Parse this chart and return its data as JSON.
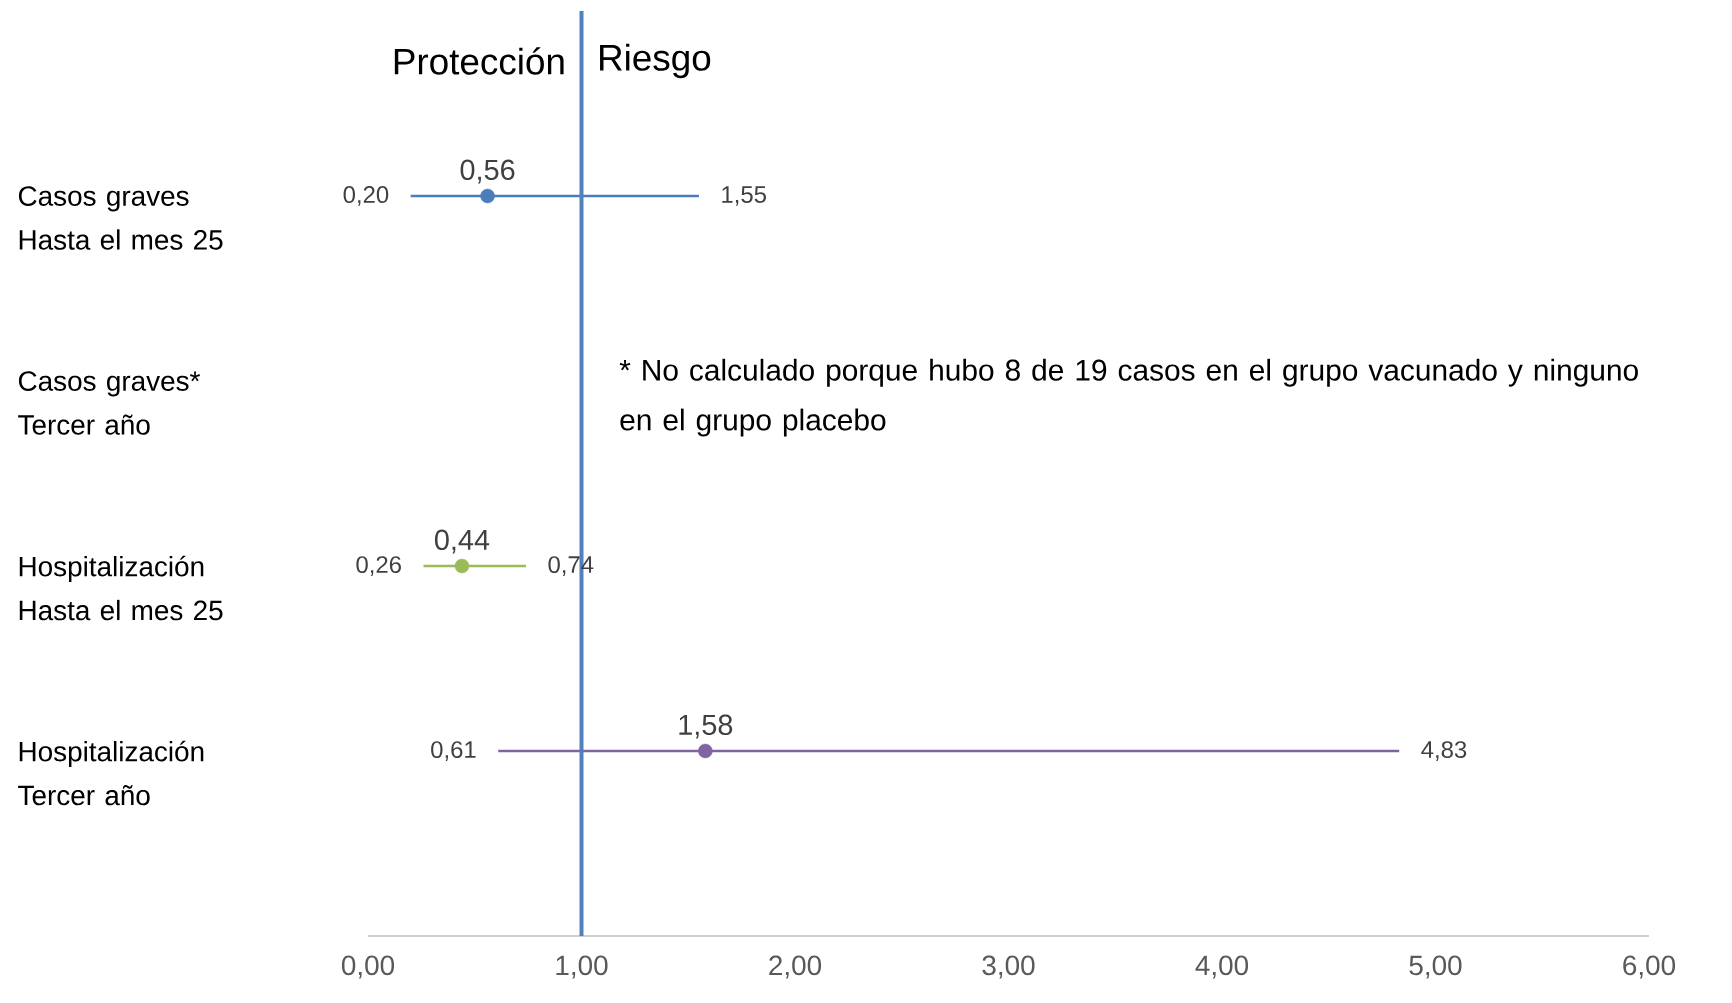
{
  "chart_data": {
    "type": "scatter",
    "orientation": "horizontal",
    "categories": [
      "Casos graves Hasta el mes 25",
      "Casos graves* Tercer año",
      "Hospitalización Hasta el mes 25",
      "Hospitalización Tercer año"
    ],
    "values": [
      0.56,
      null,
      0.44,
      1.58
    ],
    "errors": [
      [
        0.2,
        1.55
      ],
      null,
      [
        0.26,
        0.74
      ],
      [
        0.61,
        4.83
      ]
    ],
    "colors": [
      "#4a7ebb",
      "#4a7ebb",
      "#9bbb59",
      "#8064a2"
    ],
    "value_labels": [
      "0,56",
      null,
      "0,44",
      "1,58"
    ],
    "xlim": [
      0,
      6
    ],
    "xticks": [
      {
        "value": 0,
        "label": "0,00"
      },
      {
        "value": 1,
        "label": "1,00"
      },
      {
        "value": 2,
        "label": "2,00"
      },
      {
        "value": 3,
        "label": "3,00"
      },
      {
        "value": 4,
        "label": "4,00"
      },
      {
        "value": 5,
        "label": "5,00"
      },
      {
        "value": 6,
        "label": "6,00"
      }
    ],
    "ref_lines": [
      {
        "axis": "x",
        "value": 1,
        "color": "#4f81bd"
      }
    ],
    "annotations": [
      "Protección",
      "Riesgo",
      "* No calculado porque hubo 8 de 19 casos en el grupo vacunado y ninguno en el grupo placebo",
      "0,20",
      "1,55",
      "0,26",
      "0,74",
      "0,61",
      "4,83"
    ]
  }
}
